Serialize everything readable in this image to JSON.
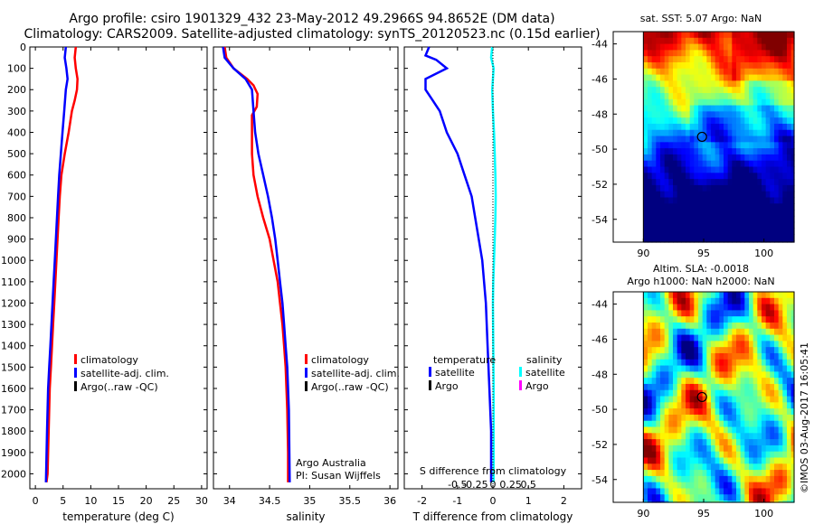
{
  "header": {
    "title": "Argo profile: csiro 1901329_432 23-May-2012 49.2966S 94.8652E (DM data)",
    "subtitle": "Climatology: CARS2009. Satellite-adjusted climatology: synTS_20120523.nc (0.15d earlier)"
  },
  "colors": {
    "climatology": "#ff0000",
    "satellite": "#0000ff",
    "argo": "#000000",
    "sal_satellite": "#00ffff",
    "sal_argo": "#ff00ff"
  },
  "chart_data": [
    {
      "type": "line",
      "id": "temperature",
      "xlabel": "temperature (deg C)",
      "ylabel": "",
      "xlim": [
        -1,
        31
      ],
      "ylim": [
        2070,
        0
      ],
      "xticks": [
        0,
        5,
        10,
        15,
        20,
        25,
        30
      ],
      "yticks": [
        0,
        100,
        200,
        300,
        400,
        500,
        600,
        700,
        800,
        900,
        1000,
        1100,
        1200,
        1300,
        1400,
        1500,
        1600,
        1700,
        1800,
        1900,
        2000
      ],
      "legend": {
        "position": "lower-middle",
        "entries": [
          {
            "label": "climatology",
            "color": "#ff0000"
          },
          {
            "label": "satellite-adj. clim.",
            "color": "#0000ff"
          },
          {
            "label": "Argo(..raw -QC)",
            "color": "#000000"
          }
        ]
      },
      "series": [
        {
          "name": "climatology",
          "color": "#ff0000",
          "x": [
            7.3,
            7.1,
            7.3,
            7.6,
            7.5,
            7.1,
            6.6,
            6.0,
            5.3,
            4.7,
            4.4,
            4.2,
            4.0,
            3.8,
            3.6,
            3.4,
            3.2,
            3.0,
            2.8,
            2.6,
            2.4,
            2.2,
            2.0
          ],
          "y": [
            0,
            50,
            100,
            150,
            200,
            250,
            300,
            400,
            500,
            600,
            700,
            800,
            900,
            1000,
            1100,
            1200,
            1300,
            1400,
            1500,
            1600,
            1800,
            2000,
            2040
          ]
        },
        {
          "name": "satellite-adj. clim.",
          "color": "#0000ff",
          "x": [
            5.5,
            5.3,
            5.6,
            5.8,
            5.5,
            5.2,
            4.9,
            4.6,
            4.3,
            4.1,
            3.9,
            3.7,
            3.5,
            3.3,
            3.1,
            2.9,
            2.7,
            2.5,
            2.3,
            2.1,
            1.9
          ],
          "y": [
            0,
            50,
            100,
            150,
            200,
            300,
            400,
            500,
            600,
            700,
            800,
            900,
            1000,
            1100,
            1200,
            1300,
            1400,
            1500,
            1600,
            1800,
            2040
          ]
        }
      ]
    },
    {
      "type": "line",
      "id": "salinity",
      "xlabel": "salinity",
      "ylabel": "",
      "xlim": [
        33.8,
        36.1
      ],
      "ylim": [
        2070,
        0
      ],
      "xticks": [
        34,
        34.5,
        35,
        35.5,
        36
      ],
      "legend": {
        "position": "lower-right",
        "entries": [
          {
            "label": "climatology",
            "color": "#ff0000"
          },
          {
            "label": "satellite-adj. clim.",
            "color": "#0000ff"
          },
          {
            "label": "Argo(..raw -QC)",
            "color": "#000000"
          }
        ]
      },
      "annotation": {
        "line1": "Argo Australia",
        "line2": "PI: Susan Wijffels"
      },
      "series": [
        {
          "name": "climatology",
          "color": "#ff0000",
          "x": [
            33.94,
            33.96,
            34.05,
            34.22,
            34.3,
            34.35,
            34.34,
            34.28,
            34.28,
            34.3,
            34.35,
            34.42,
            34.5,
            34.55,
            34.6,
            34.63,
            34.66,
            34.68,
            34.7,
            34.72,
            34.73,
            34.73
          ],
          "y": [
            0,
            50,
            100,
            150,
            180,
            220,
            280,
            320,
            500,
            600,
            700,
            800,
            900,
            1000,
            1100,
            1200,
            1300,
            1400,
            1500,
            1700,
            1900,
            2040
          ]
        },
        {
          "name": "satellite-adj. clim.",
          "color": "#0000ff",
          "x": [
            33.92,
            33.94,
            34.05,
            34.2,
            34.28,
            34.3,
            34.32,
            34.36,
            34.42,
            34.48,
            34.53,
            34.57,
            34.6,
            34.63,
            34.66,
            34.68,
            34.7,
            34.72,
            34.74,
            34.75
          ],
          "y": [
            0,
            50,
            100,
            150,
            200,
            300,
            400,
            500,
            600,
            700,
            800,
            900,
            1000,
            1100,
            1200,
            1300,
            1400,
            1500,
            1700,
            2040
          ]
        }
      ]
    },
    {
      "type": "line",
      "id": "difference",
      "xlabel": "T difference from climatology",
      "top_label": "S difference from climatology",
      "xlim": [
        -2.5,
        2.5
      ],
      "ylim": [
        2070,
        0
      ],
      "xticks": [
        -2,
        -1,
        0,
        1,
        2
      ],
      "xticklabels": [
        "-2",
        "-1",
        "0",
        "1",
        "2"
      ],
      "sticks": [
        -0.5,
        -0.25,
        0,
        0.25,
        0.5
      ],
      "sticklabels": [
        "-0.5",
        "-0.25",
        "0",
        "0.25",
        "0.5"
      ],
      "legend": {
        "position": "lower",
        "temp_header": "temperature",
        "sal_header": "salinity",
        "entries": [
          {
            "label": "satellite",
            "color": "#0000ff"
          },
          {
            "label": "Argo",
            "color": "#000000"
          },
          {
            "label": "satellite",
            "color": "#00ffff"
          },
          {
            "label": "Argo",
            "color": "#ff00ff"
          }
        ]
      },
      "series": [
        {
          "name": "temperature satellite",
          "color": "#0000ff",
          "x": [
            -1.8,
            -1.9,
            -1.6,
            -1.3,
            -1.9,
            -1.9,
            -1.7,
            -1.5,
            -1.3,
            -1.0,
            -0.8,
            -0.6,
            -0.5,
            -0.4,
            -0.3,
            -0.25,
            -0.2,
            -0.15,
            -0.1,
            -0.05,
            -0.05
          ],
          "y": [
            0,
            40,
            60,
            100,
            150,
            200,
            250,
            300,
            400,
            500,
            600,
            700,
            800,
            900,
            1000,
            1100,
            1200,
            1400,
            1600,
            1800,
            2040
          ]
        },
        {
          "name": "salinity satellite",
          "color": "#00ffff",
          "x": [
            -0.02,
            -0.05,
            0.02,
            0.0,
            -0.02,
            0.0,
            0.03,
            0.05,
            0.07,
            0.08,
            0.07,
            0.05,
            0.03,
            0.01,
            0.0,
            0.01,
            0.02,
            0.02,
            0.02
          ],
          "y": [
            0,
            50,
            100,
            150,
            200,
            300,
            400,
            500,
            600,
            700,
            800,
            900,
            1000,
            1100,
            1200,
            1400,
            1600,
            1800,
            2040
          ]
        }
      ]
    },
    {
      "type": "heatmap",
      "id": "sst-map",
      "title": "sat. SST: 5.07 Argo: NaN",
      "xlim": [
        87.5,
        102.5
      ],
      "ylim": [
        -55.3,
        -43.3
      ],
      "xticks": [
        90,
        95,
        100
      ],
      "yticks": [
        -44,
        -46,
        -48,
        -50,
        -52,
        -54
      ],
      "argo_position": [
        94.8652,
        -49.2966
      ]
    },
    {
      "type": "heatmap",
      "id": "sla-map",
      "title": "Altim. SLA: -0.0018",
      "subtitle": "Argo h1000: NaN h2000: NaN",
      "xlim": [
        87.5,
        102.5
      ],
      "ylim": [
        -55.3,
        -43.3
      ],
      "xticks": [
        90,
        95,
        100
      ],
      "yticks": [
        -44,
        -46,
        -48,
        -50,
        -52,
        -54
      ],
      "argo_position": [
        94.8652,
        -49.2966
      ]
    }
  ],
  "footer": {
    "stamp": "©IMOS 03-Aug-2017 16:05:41"
  }
}
